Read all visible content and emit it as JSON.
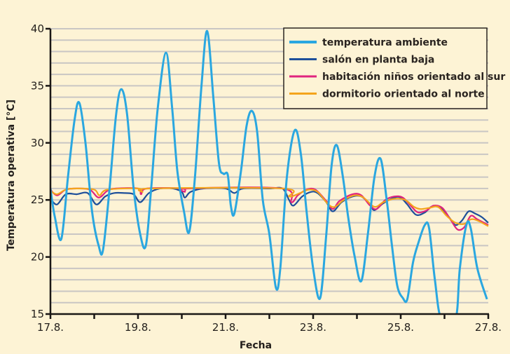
{
  "chart_data": {
    "type": "line",
    "title": "",
    "xlabel": "Fecha",
    "ylabel": "Temperatura operativa [°C]",
    "x_unit": "day of August",
    "xlim": [
      17,
      27
    ],
    "ylim": [
      15,
      40
    ],
    "x_tick_labels": [
      {
        "x": 17,
        "label": "17.8."
      },
      {
        "x": 19,
        "label": "19.8."
      },
      {
        "x": 21,
        "label": "21.8."
      },
      {
        "x": 23,
        "label": "23.8."
      },
      {
        "x": 25,
        "label": "25.8."
      },
      {
        "x": 27,
        "label": "27.8."
      }
    ],
    "y_ticks": [
      15,
      20,
      25,
      30,
      35,
      40
    ],
    "grid": "horizontal, every 1 °C",
    "legend_position": "top-right",
    "series": [
      {
        "name": "temperatura ambiente",
        "color": "#2aa7e0",
        "points": [
          [
            17.0,
            26.0
          ],
          [
            17.1,
            23.5
          ],
          [
            17.25,
            21.6
          ],
          [
            17.4,
            27
          ],
          [
            17.55,
            32
          ],
          [
            17.66,
            33.5
          ],
          [
            17.8,
            30
          ],
          [
            17.95,
            24
          ],
          [
            18.1,
            21
          ],
          [
            18.2,
            20.6
          ],
          [
            18.35,
            26
          ],
          [
            18.5,
            32.5
          ],
          [
            18.62,
            34.7
          ],
          [
            18.75,
            32.5
          ],
          [
            18.9,
            26
          ],
          [
            19.05,
            22
          ],
          [
            19.18,
            21.0
          ],
          [
            19.3,
            26
          ],
          [
            19.45,
            33
          ],
          [
            19.64,
            37.9
          ],
          [
            19.78,
            33
          ],
          [
            19.9,
            27.5
          ],
          [
            20.05,
            24
          ],
          [
            20.17,
            22.2
          ],
          [
            20.3,
            27
          ],
          [
            20.45,
            35
          ],
          [
            20.58,
            39.8
          ],
          [
            20.72,
            34
          ],
          [
            20.85,
            28.2
          ],
          [
            20.95,
            27.3
          ],
          [
            21.05,
            27.2
          ],
          [
            21.12,
            24.5
          ],
          [
            21.2,
            23.8
          ],
          [
            21.35,
            27.5
          ],
          [
            21.48,
            31.5
          ],
          [
            21.6,
            32.8
          ],
          [
            21.72,
            31
          ],
          [
            21.85,
            25
          ],
          [
            22.0,
            22
          ],
          [
            22.15,
            17.3
          ],
          [
            22.25,
            19
          ],
          [
            22.4,
            27
          ],
          [
            22.58,
            31.1
          ],
          [
            22.72,
            29
          ],
          [
            22.85,
            24
          ],
          [
            23.0,
            19
          ],
          [
            23.16,
            16.4
          ],
          [
            23.3,
            22
          ],
          [
            23.42,
            28
          ],
          [
            23.54,
            29.8
          ],
          [
            23.68,
            27
          ],
          [
            23.8,
            23.5
          ],
          [
            23.95,
            20
          ],
          [
            24.1,
            17.9
          ],
          [
            24.25,
            22
          ],
          [
            24.4,
            27
          ],
          [
            24.54,
            28.6
          ],
          [
            24.68,
            25
          ],
          [
            24.8,
            21
          ],
          [
            24.92,
            17.5
          ],
          [
            25.05,
            16.4
          ],
          [
            25.15,
            16.3
          ],
          [
            25.28,
            19.5
          ],
          [
            25.4,
            21.2
          ],
          [
            25.55,
            22.8
          ],
          [
            25.65,
            22.5
          ],
          [
            25.78,
            18
          ],
          [
            25.93,
            14.5
          ],
          [
            26.25,
            14.5
          ],
          [
            26.35,
            19
          ],
          [
            26.5,
            22.8
          ],
          [
            26.6,
            22.5
          ],
          [
            26.75,
            19
          ],
          [
            26.97,
            16.3
          ]
        ]
      },
      {
        "name": "salón en planta baja",
        "color": "#1e4f9a",
        "points": [
          [
            17.0,
            25.1
          ],
          [
            17.15,
            24.6
          ],
          [
            17.35,
            25.5
          ],
          [
            17.6,
            25.5
          ],
          [
            17.85,
            25.6
          ],
          [
            18.05,
            24.6
          ],
          [
            18.25,
            25.3
          ],
          [
            18.45,
            25.6
          ],
          [
            18.7,
            25.6
          ],
          [
            18.9,
            25.5
          ],
          [
            19.05,
            24.8
          ],
          [
            19.25,
            25.6
          ],
          [
            19.5,
            26
          ],
          [
            19.8,
            26
          ],
          [
            20.0,
            25.7
          ],
          [
            20.07,
            25.2
          ],
          [
            20.2,
            25.7
          ],
          [
            20.5,
            26
          ],
          [
            21.0,
            26
          ],
          [
            21.2,
            25.6
          ],
          [
            21.4,
            26
          ],
          [
            22.0,
            26
          ],
          [
            22.3,
            26
          ],
          [
            22.45,
            25
          ],
          [
            22.55,
            24.5
          ],
          [
            22.75,
            25.3
          ],
          [
            22.95,
            25.7
          ],
          [
            23.1,
            25.6
          ],
          [
            23.3,
            24.8
          ],
          [
            23.45,
            24.0
          ],
          [
            23.65,
            24.8
          ],
          [
            23.9,
            25.3
          ],
          [
            24.1,
            25.3
          ],
          [
            24.3,
            24.6
          ],
          [
            24.4,
            24.1
          ],
          [
            24.6,
            24.7
          ],
          [
            24.85,
            25.2
          ],
          [
            25.0,
            25.2
          ],
          [
            25.15,
            24.6
          ],
          [
            25.35,
            23.7
          ],
          [
            25.55,
            23.9
          ],
          [
            25.7,
            24.4
          ],
          [
            25.9,
            24.3
          ],
          [
            26.1,
            23.5
          ],
          [
            26.25,
            22.8
          ],
          [
            26.4,
            23.2
          ],
          [
            26.55,
            24.0
          ],
          [
            26.7,
            23.8
          ],
          [
            26.85,
            23.5
          ],
          [
            27.0,
            23.0
          ]
        ]
      },
      {
        "name": "habitación niños orientado al sur",
        "color": "#e0247e",
        "points": [
          [
            17.0,
            25.9
          ],
          [
            17.15,
            25.4
          ],
          [
            17.35,
            25.9
          ],
          [
            17.6,
            26
          ],
          [
            17.9,
            25.9
          ],
          [
            18.1,
            25.2
          ],
          [
            18.3,
            25.8
          ],
          [
            18.5,
            26
          ],
          [
            19.0,
            26
          ],
          [
            19.07,
            25.5
          ],
          [
            19.2,
            26
          ],
          [
            20.0,
            26
          ],
          [
            20.07,
            25.7
          ],
          [
            20.15,
            26
          ],
          [
            22.3,
            26
          ],
          [
            22.5,
            24.8
          ],
          [
            22.65,
            25.4
          ],
          [
            22.85,
            25.9
          ],
          [
            23.05,
            25.9
          ],
          [
            23.3,
            24.9
          ],
          [
            23.45,
            24.2
          ],
          [
            23.6,
            24.9
          ],
          [
            23.9,
            25.5
          ],
          [
            24.1,
            25.4
          ],
          [
            24.3,
            24.5
          ],
          [
            24.45,
            24.2
          ],
          [
            24.65,
            25.0
          ],
          [
            24.85,
            25.3
          ],
          [
            25.05,
            25.2
          ],
          [
            25.25,
            24.4
          ],
          [
            25.4,
            23.9
          ],
          [
            25.6,
            24.1
          ],
          [
            25.75,
            24.5
          ],
          [
            25.95,
            24.3
          ],
          [
            26.15,
            23.2
          ],
          [
            26.3,
            22.4
          ],
          [
            26.45,
            22.6
          ],
          [
            26.6,
            23.6
          ],
          [
            26.75,
            23.3
          ],
          [
            27.0,
            22.8
          ]
        ]
      },
      {
        "name": "dormitorio orientado al norte",
        "color": "#f4a41c",
        "points": [
          [
            17.0,
            25.8
          ],
          [
            17.15,
            25.5
          ],
          [
            17.35,
            25.9
          ],
          [
            17.6,
            26
          ],
          [
            18.0,
            25.9
          ],
          [
            18.12,
            25.4
          ],
          [
            18.3,
            25.9
          ],
          [
            19.0,
            26
          ],
          [
            19.1,
            25.7
          ],
          [
            19.3,
            26
          ],
          [
            22.3,
            26
          ],
          [
            22.45,
            25.3
          ],
          [
            22.7,
            25.6
          ],
          [
            22.9,
            25.9
          ],
          [
            23.1,
            25.7
          ],
          [
            23.35,
            24.6
          ],
          [
            23.5,
            24.4
          ],
          [
            23.7,
            25.0
          ],
          [
            23.95,
            25.4
          ],
          [
            24.15,
            25.2
          ],
          [
            24.4,
            24.4
          ],
          [
            24.6,
            24.8
          ],
          [
            24.85,
            25.1
          ],
          [
            25.1,
            25.0
          ],
          [
            25.3,
            24.4
          ],
          [
            25.45,
            24.2
          ],
          [
            25.65,
            24.3
          ],
          [
            25.85,
            24.4
          ],
          [
            26.05,
            23.6
          ],
          [
            26.25,
            23.0
          ],
          [
            26.45,
            22.9
          ],
          [
            26.6,
            23.3
          ],
          [
            26.75,
            23.2
          ],
          [
            27.0,
            22.7
          ]
        ]
      }
    ]
  }
}
